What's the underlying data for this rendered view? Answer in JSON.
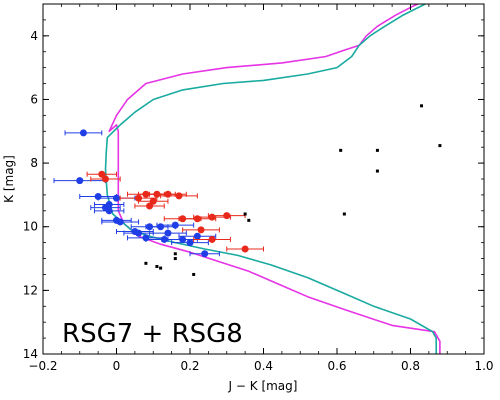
{
  "chart_data": {
    "type": "scatter",
    "panel_label": "RSG7 + RSG8",
    "xlabel": "J − K [mag]",
    "ylabel": "K [mag]",
    "xlim": [
      -0.2,
      1.0
    ],
    "ylim": [
      14.0,
      3.0
    ],
    "y_inverted": true,
    "grid": false,
    "x_ticks": [
      -0.2,
      0.0,
      0.2,
      0.4,
      0.6,
      0.8,
      1.0
    ],
    "x_tick_labels": [
      "−0.2",
      "0",
      "0.2",
      "0.4",
      "0.6",
      "0.8",
      "1.0"
    ],
    "y_ticks": [
      4,
      6,
      8,
      10,
      12,
      14
    ],
    "y_tick_labels": [
      "4",
      "6",
      "8",
      "10",
      "12",
      "14"
    ],
    "colors": {
      "blue": "#1f3ee6",
      "red": "#e8281a",
      "black": "#000000",
      "magenta": "#e633e6",
      "teal": "#19aaa0"
    },
    "isochrones": [
      {
        "color": "#e633e6",
        "points": [
          [
            0.88,
            14.0
          ],
          [
            0.88,
            13.6
          ],
          [
            0.865,
            13.3
          ],
          [
            0.75,
            13.1
          ],
          [
            0.62,
            12.6
          ],
          [
            0.52,
            12.2
          ],
          [
            0.44,
            11.8
          ],
          [
            0.36,
            11.4
          ],
          [
            0.28,
            11.1
          ],
          [
            0.2,
            10.8
          ],
          [
            0.12,
            10.55
          ],
          [
            0.06,
            10.3
          ],
          [
            0.02,
            9.9
          ],
          [
            0.005,
            9.5
          ],
          [
            0.005,
            8.5
          ],
          [
            0.005,
            7.5
          ],
          [
            0.005,
            7.0
          ],
          [
            0.0,
            6.8
          ],
          [
            -0.02,
            7.0
          ],
          [
            0.0,
            6.5
          ],
          [
            0.03,
            6.0
          ],
          [
            0.08,
            5.5
          ],
          [
            0.18,
            5.2
          ],
          [
            0.3,
            5.0
          ],
          [
            0.45,
            4.85
          ],
          [
            0.57,
            4.65
          ],
          [
            0.62,
            4.45
          ],
          [
            0.66,
            4.3
          ],
          [
            0.68,
            4.0
          ],
          [
            0.71,
            3.7
          ],
          [
            0.76,
            3.35
          ],
          [
            0.81,
            3.05
          ],
          [
            0.83,
            2.95
          ]
        ]
      },
      {
        "color": "#19aaa0",
        "points": [
          [
            0.87,
            14.0
          ],
          [
            0.87,
            13.5
          ],
          [
            0.86,
            13.3
          ],
          [
            0.8,
            12.9
          ],
          [
            0.7,
            12.5
          ],
          [
            0.62,
            12.1
          ],
          [
            0.52,
            11.6
          ],
          [
            0.42,
            11.2
          ],
          [
            0.33,
            10.9
          ],
          [
            0.24,
            10.7
          ],
          [
            0.16,
            10.5
          ],
          [
            0.09,
            10.3
          ],
          [
            0.04,
            10.1
          ],
          [
            0.01,
            9.8
          ],
          [
            -0.01,
            9.6
          ],
          [
            -0.025,
            9.0
          ],
          [
            -0.03,
            8.2
          ],
          [
            -0.028,
            7.7
          ],
          [
            -0.025,
            7.2
          ],
          [
            0.01,
            6.8
          ],
          [
            0.05,
            6.4
          ],
          [
            0.1,
            6.0
          ],
          [
            0.18,
            5.7
          ],
          [
            0.29,
            5.5
          ],
          [
            0.4,
            5.4
          ],
          [
            0.52,
            5.2
          ],
          [
            0.6,
            5.0
          ],
          [
            0.64,
            4.65
          ],
          [
            0.66,
            4.3
          ],
          [
            0.69,
            4.0
          ],
          [
            0.73,
            3.7
          ],
          [
            0.78,
            3.35
          ],
          [
            0.84,
            3.0
          ],
          [
            0.86,
            2.9
          ]
        ]
      }
    ],
    "series": [
      {
        "color": "#1f3ee6",
        "points": [
          [
            -0.09,
            7.05
          ],
          [
            -0.1,
            8.55
          ],
          [
            -0.05,
            9.05
          ],
          [
            -0.02,
            9.3
          ],
          [
            0.0,
            9.1
          ],
          [
            -0.02,
            9.5
          ],
          [
            0.0,
            9.8
          ],
          [
            0.01,
            9.85
          ],
          [
            0.05,
            10.15
          ],
          [
            0.08,
            10.35
          ],
          [
            0.09,
            10.0
          ],
          [
            0.12,
            10.0
          ],
          [
            0.14,
            10.2
          ],
          [
            0.16,
            9.95
          ],
          [
            0.18,
            10.4
          ],
          [
            0.2,
            10.5
          ],
          [
            0.22,
            10.3
          ],
          [
            0.24,
            10.85
          ],
          [
            0.13,
            10.4
          ],
          [
            0.06,
            10.2
          ],
          [
            -0.03,
            9.4
          ]
        ],
        "xerr": [
          0.05,
          0.07,
          0.05,
          0.04,
          0.05,
          0.04,
          0.04,
          0.05,
          0.05,
          0.05,
          0.05,
          0.04,
          0.05,
          0.05,
          0.04,
          0.05,
          0.05,
          0.04,
          0.05,
          0.04,
          0.04
        ]
      },
      {
        "color": "#e8281a",
        "points": [
          [
            -0.04,
            8.35
          ],
          [
            -0.03,
            8.5
          ],
          [
            0.06,
            9.1
          ],
          [
            0.08,
            8.98
          ],
          [
            0.11,
            8.98
          ],
          [
            0.14,
            8.98
          ],
          [
            0.17,
            9.03
          ],
          [
            0.09,
            9.35
          ],
          [
            0.1,
            9.2
          ],
          [
            0.18,
            9.75
          ],
          [
            0.22,
            9.75
          ],
          [
            0.26,
            9.7
          ],
          [
            0.3,
            9.65
          ],
          [
            0.23,
            10.1
          ],
          [
            0.26,
            10.4
          ],
          [
            0.35,
            10.7
          ]
        ],
        "xerr": [
          0.04,
          0.04,
          0.05,
          0.05,
          0.05,
          0.05,
          0.05,
          0.04,
          0.04,
          0.05,
          0.05,
          0.05,
          0.05,
          0.05,
          0.05,
          0.05
        ]
      },
      {
        "color": "#000000",
        "points": [
          [
            0.83,
            6.2
          ],
          [
            0.61,
            7.6
          ],
          [
            0.71,
            7.6
          ],
          [
            0.88,
            7.45
          ],
          [
            0.71,
            8.25
          ],
          [
            0.62,
            9.6
          ],
          [
            0.35,
            9.6
          ],
          [
            0.36,
            9.8
          ],
          [
            0.08,
            11.15
          ],
          [
            0.11,
            11.25
          ],
          [
            0.12,
            11.3
          ],
          [
            0.16,
            10.85
          ],
          [
            0.16,
            11.0
          ],
          [
            0.21,
            11.5
          ]
        ],
        "xerr": []
      }
    ]
  }
}
